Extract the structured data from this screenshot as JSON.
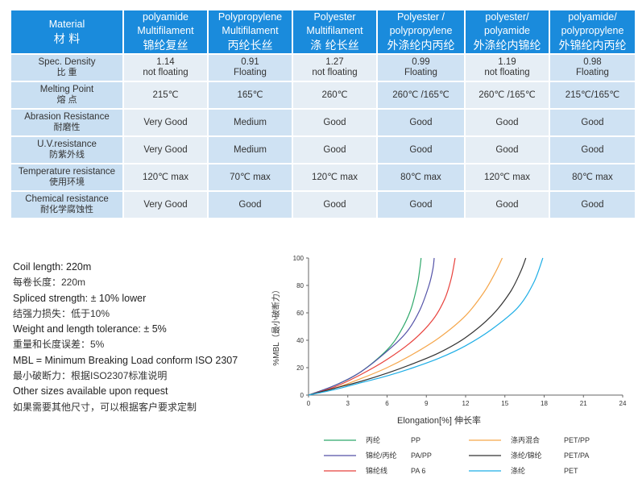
{
  "table": {
    "header": [
      {
        "en": "Material",
        "cn": "材 料"
      },
      {
        "en": "polyamide Multifilament",
        "cn": "锦纶复丝"
      },
      {
        "en": "Polypropylene Multifilament",
        "cn": "丙纶长丝"
      },
      {
        "en": "Polyester Multifilament",
        "cn": "涤 纶长丝"
      },
      {
        "en": "Polyester / polypropylene",
        "cn": "外涤纶内丙纶"
      },
      {
        "en": "polyester/ polyamide",
        "cn": "外涤纶内锦纶"
      },
      {
        "en": "polyamide/ polypropylene",
        "cn": "外锦纶内丙纶"
      }
    ],
    "rows": [
      {
        "label_en": "Spec. Density",
        "label_cn": "比 重",
        "cells": [
          "1.14\nnot floating",
          "0.91\nFloating",
          "1.27\nnot floating",
          "0.99\nFloating",
          "1.19\nnot floating",
          "0.98\nFloating"
        ]
      },
      {
        "label_en": "Melting Point",
        "label_cn": "熔 点",
        "cells": [
          "215℃",
          "165℃",
          "260℃",
          "260℃ /165℃",
          "260℃ /165℃",
          "215℃/165℃"
        ]
      },
      {
        "label_en": "Abrasion Resistance",
        "label_cn": "耐磨性",
        "cells": [
          "Very Good",
          "Medium",
          "Good",
          "Good",
          "Good",
          "Good"
        ]
      },
      {
        "label_en": "U.V.resistance",
        "label_cn": "防紫外线",
        "cells": [
          "Very Good",
          "Medium",
          "Good",
          "Good",
          "Good",
          "Good"
        ]
      },
      {
        "label_en": "Temperature resistance",
        "label_cn": "使用环境",
        "cells": [
          "120℃ max",
          "70℃ max",
          "120℃ max",
          "80℃ max",
          "120℃ max",
          "80℃ max"
        ]
      },
      {
        "label_en": "Chemical resistance",
        "label_cn": "耐化学腐蚀性",
        "cells": [
          "Very Good",
          "Good",
          "Good",
          "Good",
          "Good",
          "Good"
        ]
      }
    ]
  },
  "notes": [
    {
      "text": "Coil length: 220m",
      "lang": "en"
    },
    {
      "text": "每卷长度：220m",
      "lang": "cn"
    },
    {
      "text": "Spliced strength: ± 10% lower",
      "lang": "en"
    },
    {
      "text": "结强力损失：低于10%",
      "lang": "cn"
    },
    {
      "text": "Weight and length tolerance: ± 5%",
      "lang": "en"
    },
    {
      "text": "重量和长度误差：5%",
      "lang": "cn"
    },
    {
      "text": "MBL = Minimum Breaking Load conform ISO 2307",
      "lang": "en"
    },
    {
      "text": "最小破断力：根据ISO2307标准说明",
      "lang": "cn"
    },
    {
      "text": "Other sizes available upon request",
      "lang": "en"
    },
    {
      "text": "如果需要其他尺寸，可以根据客户要求定制",
      "lang": "cn"
    }
  ],
  "chart_data": {
    "type": "line",
    "xlabel": "Elongation[%]  伸长率",
    "ylabel": "%MBL（最小破断力）",
    "xlim": [
      0,
      24
    ],
    "ylim": [
      0,
      100
    ],
    "xticks": [
      0,
      3,
      6,
      9,
      12,
      15,
      18,
      21,
      24
    ],
    "yticks": [
      0,
      20,
      40,
      60,
      80,
      100
    ],
    "grid": false,
    "legend_position": "bottom",
    "series": [
      {
        "name": "PP",
        "cn": "丙纶",
        "color": "#2fa86b",
        "points": [
          [
            0,
            0
          ],
          [
            2,
            7
          ],
          [
            4,
            17
          ],
          [
            6,
            33
          ],
          [
            7,
            46
          ],
          [
            7.8,
            62
          ],
          [
            8.3,
            80
          ],
          [
            8.5,
            92
          ],
          [
            8.6,
            100
          ]
        ]
      },
      {
        "name": "PA/PP",
        "cn": "锦纶/丙纶",
        "color": "#5352a8",
        "points": [
          [
            0,
            0
          ],
          [
            2,
            7
          ],
          [
            4,
            17
          ],
          [
            6,
            32
          ],
          [
            7.5,
            46
          ],
          [
            8.5,
            62
          ],
          [
            9.2,
            80
          ],
          [
            9.5,
            92
          ],
          [
            9.6,
            100
          ]
        ]
      },
      {
        "name": "PA 6",
        "cn": "锦纶线",
        "color": "#e8413c",
        "points": [
          [
            0,
            0
          ],
          [
            2,
            6
          ],
          [
            4,
            15
          ],
          [
            6,
            26
          ],
          [
            8,
            40
          ],
          [
            9.5,
            55
          ],
          [
            10.4,
            70
          ],
          [
            10.9,
            85
          ],
          [
            11.2,
            100
          ]
        ]
      },
      {
        "name": "PET/PP",
        "cn": "涤丙混合",
        "color": "#f5a64a",
        "points": [
          [
            0,
            0
          ],
          [
            2,
            5
          ],
          [
            4,
            12
          ],
          [
            6,
            20
          ],
          [
            8,
            30
          ],
          [
            10,
            42
          ],
          [
            12,
            58
          ],
          [
            13.4,
            75
          ],
          [
            14.3,
            90
          ],
          [
            14.8,
            100
          ]
        ]
      },
      {
        "name": "PET/PA",
        "cn": "涤纶/锦纶",
        "color": "#333333",
        "points": [
          [
            0,
            0
          ],
          [
            2,
            5
          ],
          [
            4,
            10
          ],
          [
            6,
            16
          ],
          [
            8,
            23
          ],
          [
            10,
            31
          ],
          [
            12,
            42
          ],
          [
            14,
            58
          ],
          [
            15.4,
            75
          ],
          [
            16.2,
            90
          ],
          [
            16.6,
            100
          ]
        ]
      },
      {
        "name": "PET",
        "cn": "涤纶",
        "color": "#1eaee6",
        "points": [
          [
            0,
            0
          ],
          [
            2,
            4
          ],
          [
            4,
            9
          ],
          [
            6,
            14
          ],
          [
            8,
            20
          ],
          [
            10,
            27
          ],
          [
            12,
            36
          ],
          [
            14,
            48
          ],
          [
            16,
            64
          ],
          [
            17.2,
            82
          ],
          [
            17.9,
            100
          ]
        ]
      }
    ]
  }
}
